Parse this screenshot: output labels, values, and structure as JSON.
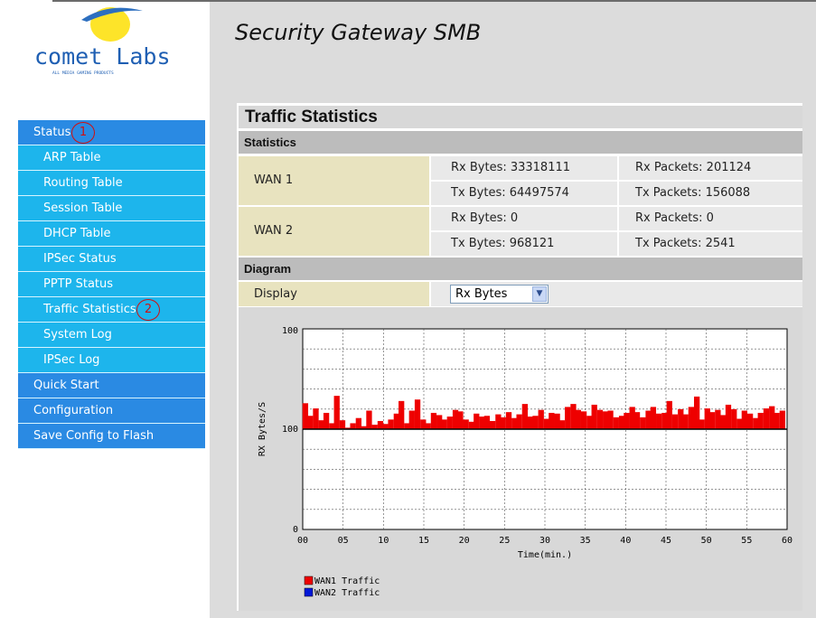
{
  "brand": {
    "logo_text": "comet Labs",
    "logo_tagline": "ALL MEDIA GAMING PRODUCTS",
    "app_title": "Security Gateway SMB"
  },
  "sidebar": {
    "items": [
      {
        "label": "Status",
        "level": "top"
      },
      {
        "label": "ARP Table",
        "level": "sub"
      },
      {
        "label": "Routing Table",
        "level": "sub"
      },
      {
        "label": "Session Table",
        "level": "sub"
      },
      {
        "label": "DHCP Table",
        "level": "sub"
      },
      {
        "label": "IPSec Status",
        "level": "sub"
      },
      {
        "label": "PPTP Status",
        "level": "sub"
      },
      {
        "label": "Traffic Statistics",
        "level": "sub"
      },
      {
        "label": "System Log",
        "level": "sub"
      },
      {
        "label": "IPSec Log",
        "level": "sub"
      },
      {
        "label": "Quick Start",
        "level": "top"
      },
      {
        "label": "Configuration",
        "level": "top"
      },
      {
        "label": "Save Config to Flash",
        "level": "top"
      }
    ],
    "markers": [
      "1",
      "2"
    ]
  },
  "panel": {
    "title": "Traffic Statistics",
    "statistics_header": "Statistics",
    "diagram_header": "Diagram",
    "display_label": "Display",
    "display_value": "Rx Bytes",
    "wan": [
      {
        "name": "WAN 1",
        "rx_bytes": "Rx Bytes: 33318111",
        "rx_packets": "Rx Packets: 201124",
        "tx_bytes": "Tx Bytes: 64497574",
        "tx_packets": "Tx Packets: 156088"
      },
      {
        "name": "WAN 2",
        "rx_bytes": "Rx Bytes: 0",
        "rx_packets": "Rx Packets: 0",
        "tx_bytes": "Tx Bytes: 968121",
        "tx_packets": "Tx Packets: 2541"
      }
    ]
  },
  "colors": {
    "wan1": "#ee0000",
    "wan2": "#0018d8",
    "menu_top": "#2a8ae3",
    "menu_sub": "#1db5ec"
  },
  "chart_data": {
    "type": "bar",
    "xlabel": "Time(min.)",
    "ylabel": "RX Bytes/S",
    "x_ticks": [
      "00",
      "05",
      "10",
      "15",
      "20",
      "25",
      "30",
      "35",
      "40",
      "45",
      "50",
      "55",
      "60"
    ],
    "y_ticks": [
      "0",
      "100",
      "100"
    ],
    "xlim": [
      0,
      60
    ],
    "grid": true,
    "legend_position": "bottom-left",
    "series": [
      {
        "name": "WAN1 Traffic",
        "x": [
          0.3,
          0.9,
          1.6,
          2.3,
          2.9,
          3.6,
          4.2,
          4.9,
          5.6,
          6.2,
          6.9,
          7.6,
          8.2,
          8.9,
          9.6,
          10.2,
          10.9,
          11.6,
          12.2,
          12.9,
          13.5,
          14.2,
          14.9,
          15.5,
          16.2,
          16.9,
          17.5,
          18.2,
          18.9,
          19.5,
          20.2,
          20.9,
          21.5,
          22.2,
          22.8,
          23.5,
          24.2,
          24.8,
          25.5,
          26.2,
          26.8,
          27.5,
          28.2,
          28.8,
          29.5,
          30.2,
          30.8,
          31.5,
          32.1,
          32.8,
          33.5,
          34.1,
          34.8,
          35.5,
          36.1,
          36.8,
          37.5,
          38.1,
          38.8,
          39.5,
          40.1,
          40.8,
          41.4,
          42.1,
          42.8,
          43.4,
          44.1,
          44.8,
          45.4,
          46.1,
          46.8,
          47.4,
          48.1,
          48.8,
          49.4,
          50.1,
          50.7,
          51.4,
          52.1,
          52.7,
          53.4,
          54.1,
          54.7,
          55.4,
          56.1,
          56.7,
          57.4,
          58.1,
          58.7,
          59.4
        ],
        "values": [
          135,
          118,
          128,
          112,
          122,
          108,
          145,
          112,
          102,
          108,
          115,
          104,
          125,
          106,
          111,
          107,
          113,
          121,
          138,
          108,
          125,
          140,
          113,
          108,
          122,
          119,
          113,
          117,
          126,
          124,
          113,
          110,
          121,
          117,
          118,
          111,
          120,
          116,
          123,
          115,
          120,
          134,
          117,
          118,
          126,
          114,
          122,
          121,
          112,
          130,
          134,
          126,
          124,
          118,
          133,
          126,
          124,
          125,
          116,
          118,
          122,
          130,
          123,
          116,
          125,
          130,
          121,
          122,
          138,
          120,
          127,
          120,
          130,
          144,
          113,
          128,
          123,
          126,
          119,
          133,
          127,
          114,
          125,
          121,
          115,
          122,
          128,
          131,
          122,
          125
        ]
      },
      {
        "name": "WAN2 Traffic",
        "x": [],
        "values": []
      }
    ]
  }
}
